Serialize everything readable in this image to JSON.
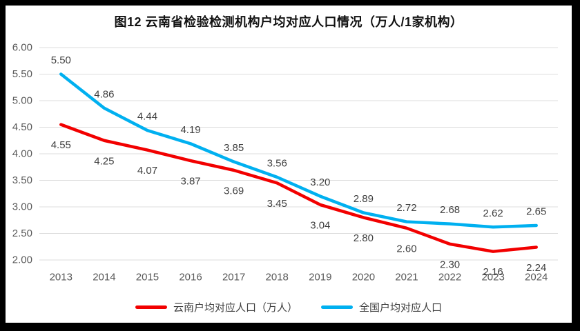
{
  "colors": {
    "yunnan": "#F20000",
    "national": "#00B0F0",
    "grid": "#DCDCDC",
    "axis_text": "#595959",
    "label_text": "#404040",
    "frame": "#000000",
    "background": "#FFFFFF"
  },
  "chart_data": {
    "type": "line",
    "title": "图12 云南省检验检测机构户均对应人口情况（万人/1家机构）",
    "categories": [
      "2013",
      "2014",
      "2015",
      "2016",
      "2017",
      "2018",
      "2019",
      "2020",
      "2021",
      "2022",
      "2023",
      "2024"
    ],
    "series": [
      {
        "name": "云南户均对应人口（万人）",
        "color_key": "yunnan",
        "values": [
          4.55,
          4.25,
          4.07,
          3.87,
          3.69,
          3.45,
          3.04,
          2.8,
          2.6,
          2.3,
          2.16,
          2.24
        ],
        "label_position": "below"
      },
      {
        "name": "全国户均对应人口",
        "color_key": "national",
        "values": [
          5.5,
          4.86,
          4.44,
          4.19,
          3.85,
          3.56,
          3.2,
          2.89,
          2.72,
          2.68,
          2.62,
          2.65
        ],
        "label_position": "above"
      }
    ],
    "ylim": [
      2.0,
      6.0
    ],
    "ytick_step": 0.5,
    "yticks": [
      "6.00",
      "5.50",
      "5.00",
      "4.50",
      "4.00",
      "3.50",
      "3.00",
      "2.50",
      "2.00"
    ],
    "xlabel": "",
    "ylabel": "",
    "grid": true,
    "legend_position": "bottom",
    "data_labels_format": "2dp"
  }
}
